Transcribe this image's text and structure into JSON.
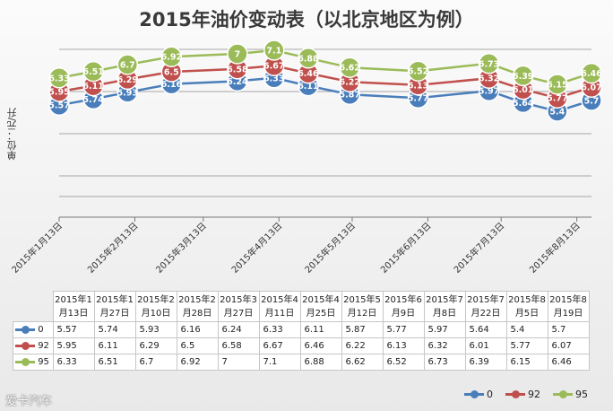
{
  "chart_data": {
    "type": "line",
    "title": "2015年油价变动表（以北京地区为例）",
    "ylabel": "单位：元/升",
    "x_axis_ticks": [
      "2015年1月13日",
      "2015年2月13日",
      "2015年3月13日",
      "2015年4月13日",
      "2015年5月13日",
      "2015年6月13日",
      "2015年7月13日",
      "2015年8月13日"
    ],
    "table_headers": [
      "2015年1\n月13日",
      "2015年1\n月27日",
      "2015年2\n月10日",
      "2015年2\n月28日",
      "2015年3\n月27日",
      "2015年4\n月11日",
      "2015年4\n月25日",
      "2015年5\n月12日",
      "2015年6\n月9日",
      "2015年7\n月8日",
      "2015年7\n月22日",
      "2015年8\n月5日",
      "2015年8\n月19日"
    ],
    "x": [
      "2015-01-13",
      "2015-01-27",
      "2015-02-10",
      "2015-02-28",
      "2015-03-27",
      "2015-04-11",
      "2015-04-25",
      "2015-05-12",
      "2015-06-09",
      "2015-07-08",
      "2015-07-22",
      "2015-08-05",
      "2015-08-19"
    ],
    "series": [
      {
        "name": "0",
        "color": "#4a7ebb",
        "values": [
          5.57,
          5.74,
          5.93,
          6.16,
          6.24,
          6.33,
          6.11,
          5.87,
          5.77,
          5.97,
          5.64,
          5.4,
          5.7
        ]
      },
      {
        "name": "92",
        "color": "#c0504d",
        "values": [
          5.95,
          6.11,
          6.29,
          6.5,
          6.58,
          6.67,
          6.46,
          6.22,
          6.13,
          6.32,
          6.01,
          5.77,
          6.07
        ]
      },
      {
        "name": "95",
        "color": "#9bbb59",
        "values": [
          6.33,
          6.51,
          6.7,
          6.92,
          7,
          7.1,
          6.88,
          6.62,
          6.52,
          6.73,
          6.39,
          6.15,
          6.46
        ]
      }
    ],
    "grid": true,
    "legend_position": "bottom-right"
  },
  "watermark": "爱卡汽车"
}
